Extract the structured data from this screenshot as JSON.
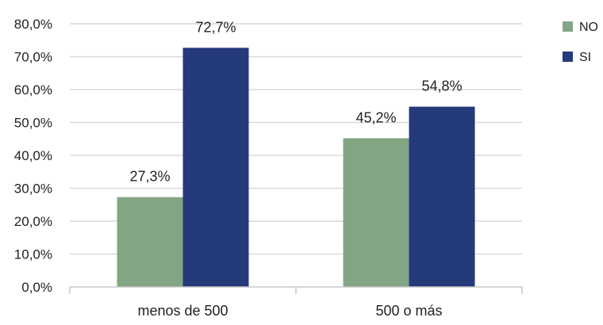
{
  "chart_data": {
    "type": "bar",
    "categories": [
      "menos de 500",
      "500 o más"
    ],
    "series": [
      {
        "name": "NO",
        "values": [
          27.3,
          45.2
        ],
        "labels": [
          "27,3%",
          "45,2%"
        ],
        "color": "#84a584"
      },
      {
        "name": "SI",
        "values": [
          72.7,
          54.8
        ],
        "labels": [
          "72,7%",
          "54,8%"
        ],
        "color": "#253a7a"
      }
    ],
    "yticks": [
      0,
      10,
      20,
      30,
      40,
      50,
      60,
      70,
      80
    ],
    "ytick_labels": [
      "0,0%",
      "10,0%",
      "20,0%",
      "30,0%",
      "40,0%",
      "50,0%",
      "60,0%",
      "70,0%",
      "80,0%"
    ],
    "ylim": [
      0,
      80
    ],
    "grid": true,
    "legend_position": "top-right",
    "title": "",
    "xlabel": "",
    "ylabel": ""
  }
}
